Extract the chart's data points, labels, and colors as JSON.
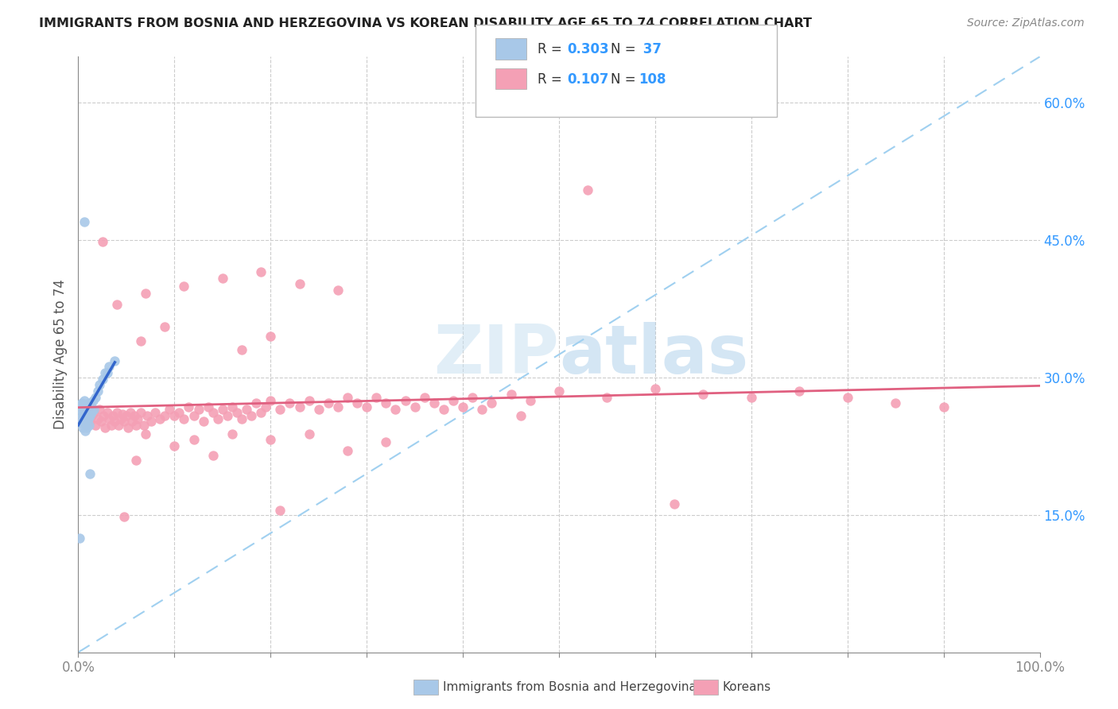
{
  "title": "IMMIGRANTS FROM BOSNIA AND HERZEGOVINA VS KOREAN DISABILITY AGE 65 TO 74 CORRELATION CHART",
  "source": "Source: ZipAtlas.com",
  "ylabel": "Disability Age 65 to 74",
  "xlim": [
    0,
    1.0
  ],
  "ylim": [
    0,
    0.65
  ],
  "bosnia_color": "#a8c8e8",
  "korean_color": "#f4a0b5",
  "bosnia_line_color": "#3366cc",
  "korean_line_color": "#e06080",
  "diag_line_color": "#a0d0f0",
  "watermark_color": "#c8e4f5",
  "background_color": "#ffffff",
  "bosnia_points": [
    [
      0.001,
      0.27
    ],
    [
      0.002,
      0.268
    ],
    [
      0.002,
      0.255
    ],
    [
      0.003,
      0.265
    ],
    [
      0.003,
      0.25
    ],
    [
      0.004,
      0.26
    ],
    [
      0.004,
      0.272
    ],
    [
      0.005,
      0.258
    ],
    [
      0.005,
      0.245
    ],
    [
      0.006,
      0.262
    ],
    [
      0.006,
      0.275
    ],
    [
      0.007,
      0.255
    ],
    [
      0.007,
      0.242
    ],
    [
      0.008,
      0.268
    ],
    [
      0.008,
      0.252
    ],
    [
      0.009,
      0.26
    ],
    [
      0.009,
      0.245
    ],
    [
      0.01,
      0.255
    ],
    [
      0.01,
      0.265
    ],
    [
      0.011,
      0.272
    ],
    [
      0.011,
      0.248
    ],
    [
      0.012,
      0.258
    ],
    [
      0.013,
      0.27
    ],
    [
      0.014,
      0.262
    ],
    [
      0.015,
      0.275
    ],
    [
      0.016,
      0.265
    ],
    [
      0.018,
      0.278
    ],
    [
      0.02,
      0.285
    ],
    [
      0.022,
      0.292
    ],
    [
      0.025,
      0.298
    ],
    [
      0.028,
      0.305
    ],
    [
      0.032,
      0.312
    ],
    [
      0.038,
      0.318
    ],
    [
      0.006,
      0.47
    ],
    [
      0.001,
      0.125
    ],
    [
      0.012,
      0.195
    ],
    [
      0.03,
      0.305
    ]
  ],
  "korean_points": [
    [
      0.004,
      0.255
    ],
    [
      0.006,
      0.26
    ],
    [
      0.008,
      0.248
    ],
    [
      0.01,
      0.265
    ],
    [
      0.012,
      0.252
    ],
    [
      0.014,
      0.258
    ],
    [
      0.016,
      0.262
    ],
    [
      0.018,
      0.248
    ],
    [
      0.02,
      0.255
    ],
    [
      0.022,
      0.265
    ],
    [
      0.024,
      0.252
    ],
    [
      0.026,
      0.258
    ],
    [
      0.028,
      0.245
    ],
    [
      0.03,
      0.262
    ],
    [
      0.032,
      0.255
    ],
    [
      0.034,
      0.248
    ],
    [
      0.036,
      0.258
    ],
    [
      0.038,
      0.252
    ],
    [
      0.04,
      0.262
    ],
    [
      0.042,
      0.248
    ],
    [
      0.044,
      0.255
    ],
    [
      0.046,
      0.26
    ],
    [
      0.048,
      0.252
    ],
    [
      0.05,
      0.258
    ],
    [
      0.052,
      0.245
    ],
    [
      0.054,
      0.262
    ],
    [
      0.056,
      0.252
    ],
    [
      0.058,
      0.258
    ],
    [
      0.06,
      0.248
    ],
    [
      0.062,
      0.255
    ],
    [
      0.065,
      0.262
    ],
    [
      0.068,
      0.248
    ],
    [
      0.072,
      0.258
    ],
    [
      0.076,
      0.252
    ],
    [
      0.08,
      0.262
    ],
    [
      0.085,
      0.255
    ],
    [
      0.09,
      0.258
    ],
    [
      0.095,
      0.265
    ],
    [
      0.1,
      0.258
    ],
    [
      0.105,
      0.262
    ],
    [
      0.11,
      0.255
    ],
    [
      0.115,
      0.268
    ],
    [
      0.12,
      0.258
    ],
    [
      0.125,
      0.265
    ],
    [
      0.13,
      0.252
    ],
    [
      0.135,
      0.268
    ],
    [
      0.14,
      0.262
    ],
    [
      0.145,
      0.255
    ],
    [
      0.15,
      0.265
    ],
    [
      0.155,
      0.258
    ],
    [
      0.16,
      0.268
    ],
    [
      0.165,
      0.262
    ],
    [
      0.17,
      0.255
    ],
    [
      0.175,
      0.265
    ],
    [
      0.18,
      0.258
    ],
    [
      0.185,
      0.272
    ],
    [
      0.19,
      0.262
    ],
    [
      0.195,
      0.268
    ],
    [
      0.2,
      0.275
    ],
    [
      0.21,
      0.265
    ],
    [
      0.22,
      0.272
    ],
    [
      0.23,
      0.268
    ],
    [
      0.24,
      0.275
    ],
    [
      0.25,
      0.265
    ],
    [
      0.26,
      0.272
    ],
    [
      0.27,
      0.268
    ],
    [
      0.28,
      0.278
    ],
    [
      0.29,
      0.272
    ],
    [
      0.3,
      0.268
    ],
    [
      0.31,
      0.278
    ],
    [
      0.32,
      0.272
    ],
    [
      0.33,
      0.265
    ],
    [
      0.34,
      0.275
    ],
    [
      0.35,
      0.268
    ],
    [
      0.36,
      0.278
    ],
    [
      0.37,
      0.272
    ],
    [
      0.38,
      0.265
    ],
    [
      0.39,
      0.275
    ],
    [
      0.4,
      0.268
    ],
    [
      0.41,
      0.278
    ],
    [
      0.43,
      0.272
    ],
    [
      0.45,
      0.282
    ],
    [
      0.47,
      0.275
    ],
    [
      0.5,
      0.285
    ],
    [
      0.55,
      0.278
    ],
    [
      0.6,
      0.288
    ],
    [
      0.65,
      0.282
    ],
    [
      0.7,
      0.278
    ],
    [
      0.75,
      0.285
    ],
    [
      0.8,
      0.278
    ],
    [
      0.85,
      0.272
    ],
    [
      0.9,
      0.268
    ],
    [
      0.04,
      0.38
    ],
    [
      0.07,
      0.392
    ],
    [
      0.11,
      0.4
    ],
    [
      0.15,
      0.408
    ],
    [
      0.19,
      0.415
    ],
    [
      0.23,
      0.402
    ],
    [
      0.27,
      0.395
    ],
    [
      0.53,
      0.505
    ],
    [
      0.025,
      0.448
    ],
    [
      0.21,
      0.155
    ],
    [
      0.065,
      0.34
    ],
    [
      0.09,
      0.355
    ],
    [
      0.17,
      0.33
    ],
    [
      0.2,
      0.345
    ],
    [
      0.07,
      0.238
    ],
    [
      0.12,
      0.232
    ],
    [
      0.16,
      0.238
    ],
    [
      0.2,
      0.232
    ],
    [
      0.24,
      0.238
    ],
    [
      0.1,
      0.225
    ],
    [
      0.28,
      0.22
    ],
    [
      0.32,
      0.23
    ],
    [
      0.06,
      0.21
    ],
    [
      0.14,
      0.215
    ],
    [
      0.42,
      0.265
    ],
    [
      0.46,
      0.258
    ],
    [
      0.048,
      0.148
    ],
    [
      0.62,
      0.162
    ]
  ]
}
